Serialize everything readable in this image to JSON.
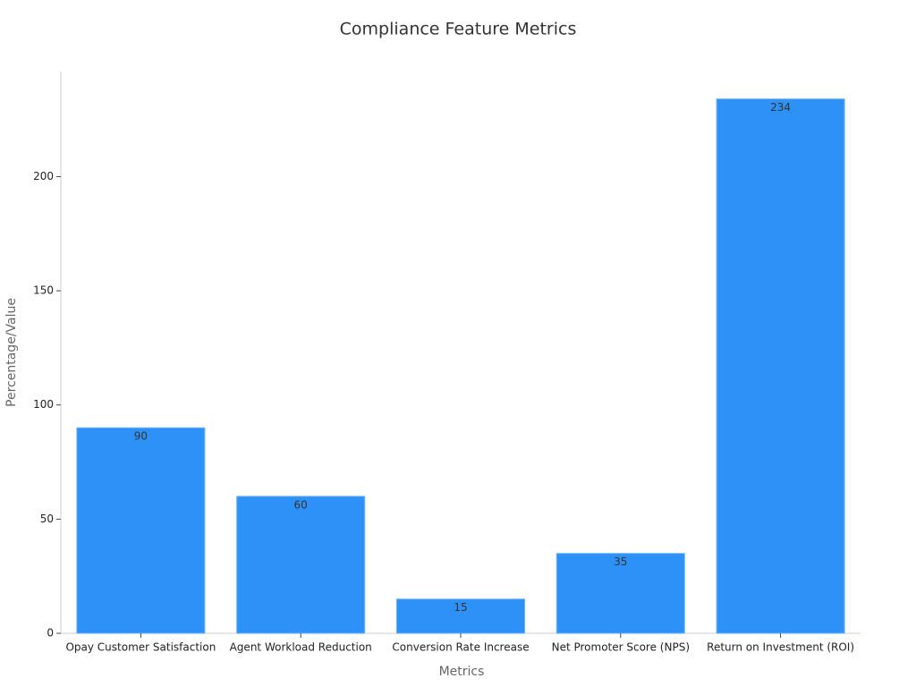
{
  "chart_data": {
    "type": "bar",
    "title": "Compliance Feature Metrics",
    "x_label": "Metrics",
    "y_label": "Percentage/Value",
    "categories": [
      "Opay Customer Satisfaction",
      "Agent Workload Reduction",
      "Conversion Rate Increase",
      "Net Promoter Score (NPS)",
      "Return on Investment (ROI)"
    ],
    "values": [
      90,
      60,
      15,
      35,
      234
    ],
    "color": "#2e91f8",
    "ylim": [
      0,
      246
    ],
    "yticks": [
      0,
      50,
      100,
      150,
      200
    ],
    "grid": false
  }
}
